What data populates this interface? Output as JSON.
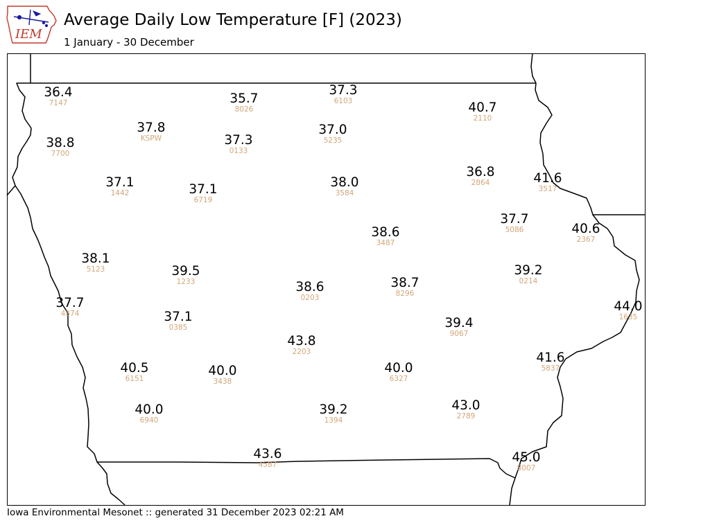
{
  "header": {
    "title": "Average Daily Low Temperature [F] (2023)",
    "subtitle": "1 January - 30 December"
  },
  "logo": {
    "text": "IEM",
    "icon": "iowa-state-outline-icon"
  },
  "footer": {
    "text": "Iowa Environmental Mesonet :: generated 31 December 2023 02:21 AM"
  },
  "colors": {
    "value_text": "#000000",
    "station_id_text": "#d2a679",
    "border": "#000000",
    "logo_red": "#c0392b",
    "logo_blue": "#1a1aa0"
  },
  "stations": [
    {
      "value": "36.4",
      "id": "7147"
    },
    {
      "value": "35.7",
      "id": "8026"
    },
    {
      "value": "37.3",
      "id": "6103"
    },
    {
      "value": "40.7",
      "id": "2110"
    },
    {
      "value": "37.8",
      "id": "KSPW"
    },
    {
      "value": "38.8",
      "id": "7700"
    },
    {
      "value": "37.3",
      "id": "0133"
    },
    {
      "value": "37.0",
      "id": "5235"
    },
    {
      "value": "36.8",
      "id": "2864"
    },
    {
      "value": "41.6",
      "id": "3517"
    },
    {
      "value": "37.1",
      "id": "1442"
    },
    {
      "value": "37.1",
      "id": "6719"
    },
    {
      "value": "38.0",
      "id": "3584"
    },
    {
      "value": "37.7",
      "id": "5086"
    },
    {
      "value": "40.6",
      "id": "2367"
    },
    {
      "value": "38.6",
      "id": "3487"
    },
    {
      "value": "38.1",
      "id": "5123"
    },
    {
      "value": "39.5",
      "id": "1233"
    },
    {
      "value": "39.2",
      "id": "0214"
    },
    {
      "value": "38.6",
      "id": "0203"
    },
    {
      "value": "38.7",
      "id": "8296"
    },
    {
      "value": "37.7",
      "id": "4874"
    },
    {
      "value": "44.0",
      "id": "1635"
    },
    {
      "value": "37.1",
      "id": "0385"
    },
    {
      "value": "39.4",
      "id": "9067"
    },
    {
      "value": "43.8",
      "id": "2203"
    },
    {
      "value": "41.6",
      "id": "5837"
    },
    {
      "value": "40.5",
      "id": "6151"
    },
    {
      "value": "40.0",
      "id": "3438"
    },
    {
      "value": "40.0",
      "id": "6327"
    },
    {
      "value": "40.0",
      "id": "6940"
    },
    {
      "value": "39.2",
      "id": "1394"
    },
    {
      "value": "43.0",
      "id": "2789"
    },
    {
      "value": "43.6",
      "id": "4587"
    },
    {
      "value": "45.0",
      "id": "8007"
    }
  ]
}
